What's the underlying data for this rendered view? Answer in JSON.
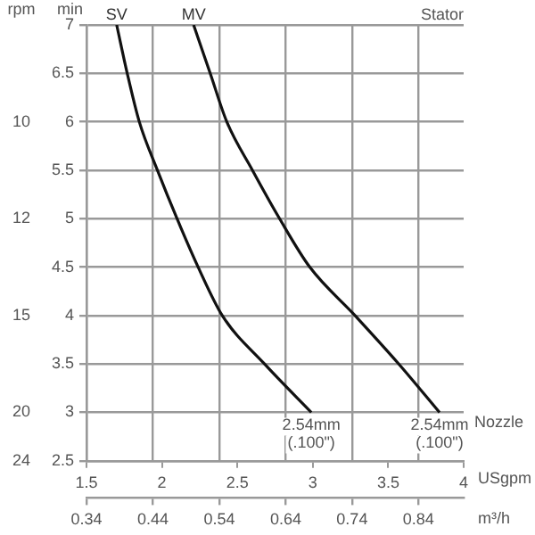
{
  "chart_data": {
    "type": "line",
    "series": [
      {
        "name": "SV",
        "color": "#111111",
        "x": [
          1.7,
          1.77,
          1.85,
          1.97,
          2.1,
          2.24,
          2.4,
          2.68,
          2.99
        ],
        "values": [
          7,
          6.5,
          6,
          5.5,
          5,
          4.5,
          4,
          3.5,
          3
        ]
      },
      {
        "name": "MV",
        "color": "#111111",
        "x": [
          2.21,
          2.32,
          2.43,
          2.6,
          2.78,
          2.98,
          3.28,
          3.57,
          3.84
        ],
        "values": [
          7,
          6.5,
          6,
          5.5,
          5,
          4.5,
          4,
          3.5,
          3
        ]
      }
    ],
    "xlim": [
      1.5,
      4
    ],
    "xticks": [
      1.5,
      2,
      2.5,
      3,
      3.5,
      4
    ],
    "xlabel": "USgpm",
    "x2lim": [
      0.34,
      0.908
    ],
    "x2ticks": [
      0.34,
      0.44,
      0.54,
      0.64,
      0.74,
      0.84
    ],
    "x2label": "m³/h",
    "ylim": [
      2.5,
      7
    ],
    "yticks": [
      2.5,
      3,
      3.5,
      4,
      4.5,
      5,
      5.5,
      6,
      6.5,
      7
    ],
    "ylabel": "min",
    "annotations": [
      "Stator",
      "Nozzle",
      "rpm",
      "10",
      "12",
      "15",
      "20",
      "24",
      {
        "text": "2.54mm\n(.100\")",
        "x": 2.99,
        "y": 3
      },
      {
        "text": "2.54mm\n(.100\")",
        "x": 3.84,
        "y": 3
      }
    ],
    "grid": true,
    "legend": false,
    "marker": "none",
    "line_style": "solid"
  }
}
